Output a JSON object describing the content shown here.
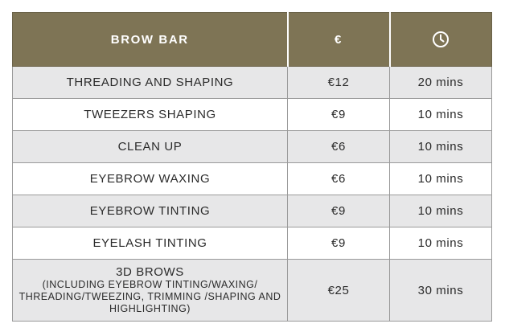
{
  "header": {
    "service": "BROW BAR",
    "price": "€",
    "time_icon": "clock-icon"
  },
  "rows": [
    {
      "service": "THREADING AND SHAPING",
      "price": "€12",
      "duration": "20 mins"
    },
    {
      "service": "TWEEZERS SHAPING",
      "price": "€9",
      "duration": "10 mins"
    },
    {
      "service": "CLEAN UP",
      "price": "€6",
      "duration": "10 mins"
    },
    {
      "service": "EYEBROW WAXING",
      "price": "€6",
      "duration": "10 mins"
    },
    {
      "service": "EYEBROW TINTING",
      "price": "€9",
      "duration": "10 mins"
    },
    {
      "service": "EYELASH TINTING",
      "price": "€9",
      "duration": "10 mins"
    },
    {
      "service": "3D BROWS",
      "detail": "(INCLUDING EYEBROW TINTING/WAXING/ THREADING/TWEEZING, TRIMMING /SHAPING AND HIGHLIGHTING)",
      "price": "€25",
      "duration": "30 mins"
    }
  ],
  "colors": {
    "header_bg": "#7e7455",
    "header_text": "#ffffff",
    "row_alt_bg": "#e7e7e8",
    "row_bg": "#ffffff",
    "border": "#9a9a9a"
  }
}
